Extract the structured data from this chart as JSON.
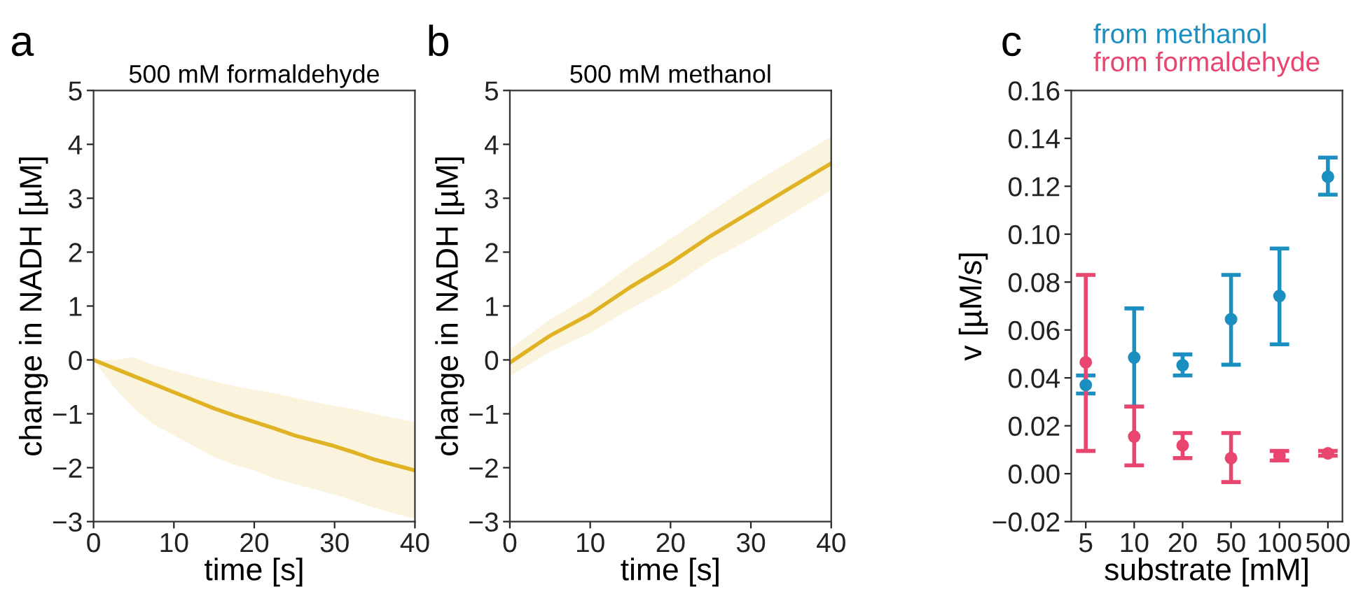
{
  "chart_data": [
    {
      "type": "line",
      "title": "500 mM formaldehyde",
      "xlabel": "time [s]",
      "ylabel": "change in NADH [µM]",
      "annotations": [
        "a"
      ],
      "xlim": [
        0,
        40
      ],
      "ylim": [
        -3,
        5
      ],
      "xticks": [
        0,
        10,
        20,
        30,
        40
      ],
      "yticks": [
        {
          "value": -3,
          "label": "−3"
        },
        {
          "value": -2,
          "label": "−2"
        },
        {
          "value": -1,
          "label": "−1"
        },
        0,
        1,
        2,
        3,
        4,
        5
      ],
      "grid": false,
      "legend": false,
      "series": [
        {
          "color": "#e0b325",
          "x": [
            0,
            2.5,
            5,
            7.5,
            10,
            12.5,
            15,
            17.5,
            20,
            22.5,
            25,
            27.5,
            30,
            32.5,
            35,
            37.5,
            40
          ],
          "values": [
            0,
            -0.15,
            -0.3,
            -0.45,
            -0.6,
            -0.75,
            -0.9,
            -1.03,
            -1.15,
            -1.27,
            -1.4,
            -1.5,
            -1.6,
            -1.72,
            -1.85,
            -1.95,
            -2.05
          ],
          "lower": [
            0,
            -0.5,
            -0.9,
            -1.2,
            -1.4,
            -1.6,
            -1.8,
            -1.95,
            -2.05,
            -2.2,
            -2.3,
            -2.4,
            -2.5,
            -2.62,
            -2.75,
            -2.85,
            -2.95
          ],
          "upper": [
            0,
            0.0,
            0.05,
            -0.1,
            -0.2,
            -0.3,
            -0.4,
            -0.48,
            -0.55,
            -0.62,
            -0.7,
            -0.78,
            -0.85,
            -0.92,
            -1.0,
            -1.08,
            -1.15
          ]
        }
      ]
    },
    {
      "type": "line",
      "title": "500 mM methanol",
      "xlabel": "time [s]",
      "ylabel": "change in NADH [µM]",
      "annotations": [
        "b"
      ],
      "xlim": [
        0,
        40
      ],
      "ylim": [
        -3,
        5
      ],
      "xticks": [
        0,
        10,
        20,
        30,
        40
      ],
      "yticks": [
        {
          "value": -3,
          "label": "−3"
        },
        {
          "value": -2,
          "label": "−2"
        },
        {
          "value": -1,
          "label": "−1"
        },
        0,
        1,
        2,
        3,
        4,
        5
      ],
      "grid": false,
      "legend": false,
      "series": [
        {
          "color": "#e0b325",
          "x": [
            0,
            5,
            10,
            15,
            20,
            25,
            30,
            35,
            40
          ],
          "values": [
            -0.05,
            0.45,
            0.85,
            1.35,
            1.8,
            2.3,
            2.75,
            3.2,
            3.65
          ],
          "lower": [
            -0.3,
            0.15,
            0.5,
            0.95,
            1.35,
            1.85,
            2.25,
            2.7,
            3.15
          ],
          "upper": [
            0.2,
            0.75,
            1.2,
            1.75,
            2.25,
            2.75,
            3.25,
            3.7,
            4.15
          ]
        }
      ]
    },
    {
      "type": "scatter",
      "ylabel": "v [µM/s]",
      "xlabel": "substrate [mM]",
      "annotations": [
        "c"
      ],
      "categories": [
        "5",
        "10",
        "20",
        "50",
        "100",
        "500"
      ],
      "ylim": [
        -0.02,
        0.16
      ],
      "yticks": [
        {
          "value": -0.02,
          "label": "−0.02"
        },
        {
          "value": 0,
          "label": "0.00"
        },
        {
          "value": 0.02,
          "label": "0.02"
        },
        {
          "value": 0.04,
          "label": "0.04"
        },
        {
          "value": 0.06,
          "label": "0.06"
        },
        {
          "value": 0.08,
          "label": "0.08"
        },
        {
          "value": 0.1,
          "label": "0.10"
        },
        {
          "value": 0.12,
          "label": "0.12"
        },
        {
          "value": 0.14,
          "label": "0.14"
        },
        {
          "value": 0.16,
          "label": "0.16"
        }
      ],
      "grid": false,
      "legend": "top",
      "marker": "circle",
      "series": [
        {
          "name": "from methanol",
          "color": "#1a8fc0",
          "values": [
            0.037,
            0.0485,
            0.0453,
            0.0645,
            0.0742,
            0.124
          ],
          "errors": [
            [
              0.0335,
              0.041
            ],
            [
              0.028,
              0.069
            ],
            [
              0.041,
              0.0498
            ],
            [
              0.0455,
              0.083
            ],
            [
              0.054,
              0.094
            ],
            [
              0.1165,
              0.132
            ]
          ]
        },
        {
          "name": "from formaldehyde",
          "color": "#e8456f",
          "values": [
            0.0465,
            0.0155,
            0.0118,
            0.0065,
            0.0075,
            0.0085
          ],
          "errors": [
            [
              0.0095,
              0.083
            ],
            [
              0.0035,
              0.028
            ],
            [
              0.0065,
              0.017
            ],
            [
              -0.0035,
              0.017
            ],
            [
              0.0055,
              0.0095
            ],
            [
              0.0075,
              0.0095
            ]
          ]
        }
      ]
    }
  ]
}
